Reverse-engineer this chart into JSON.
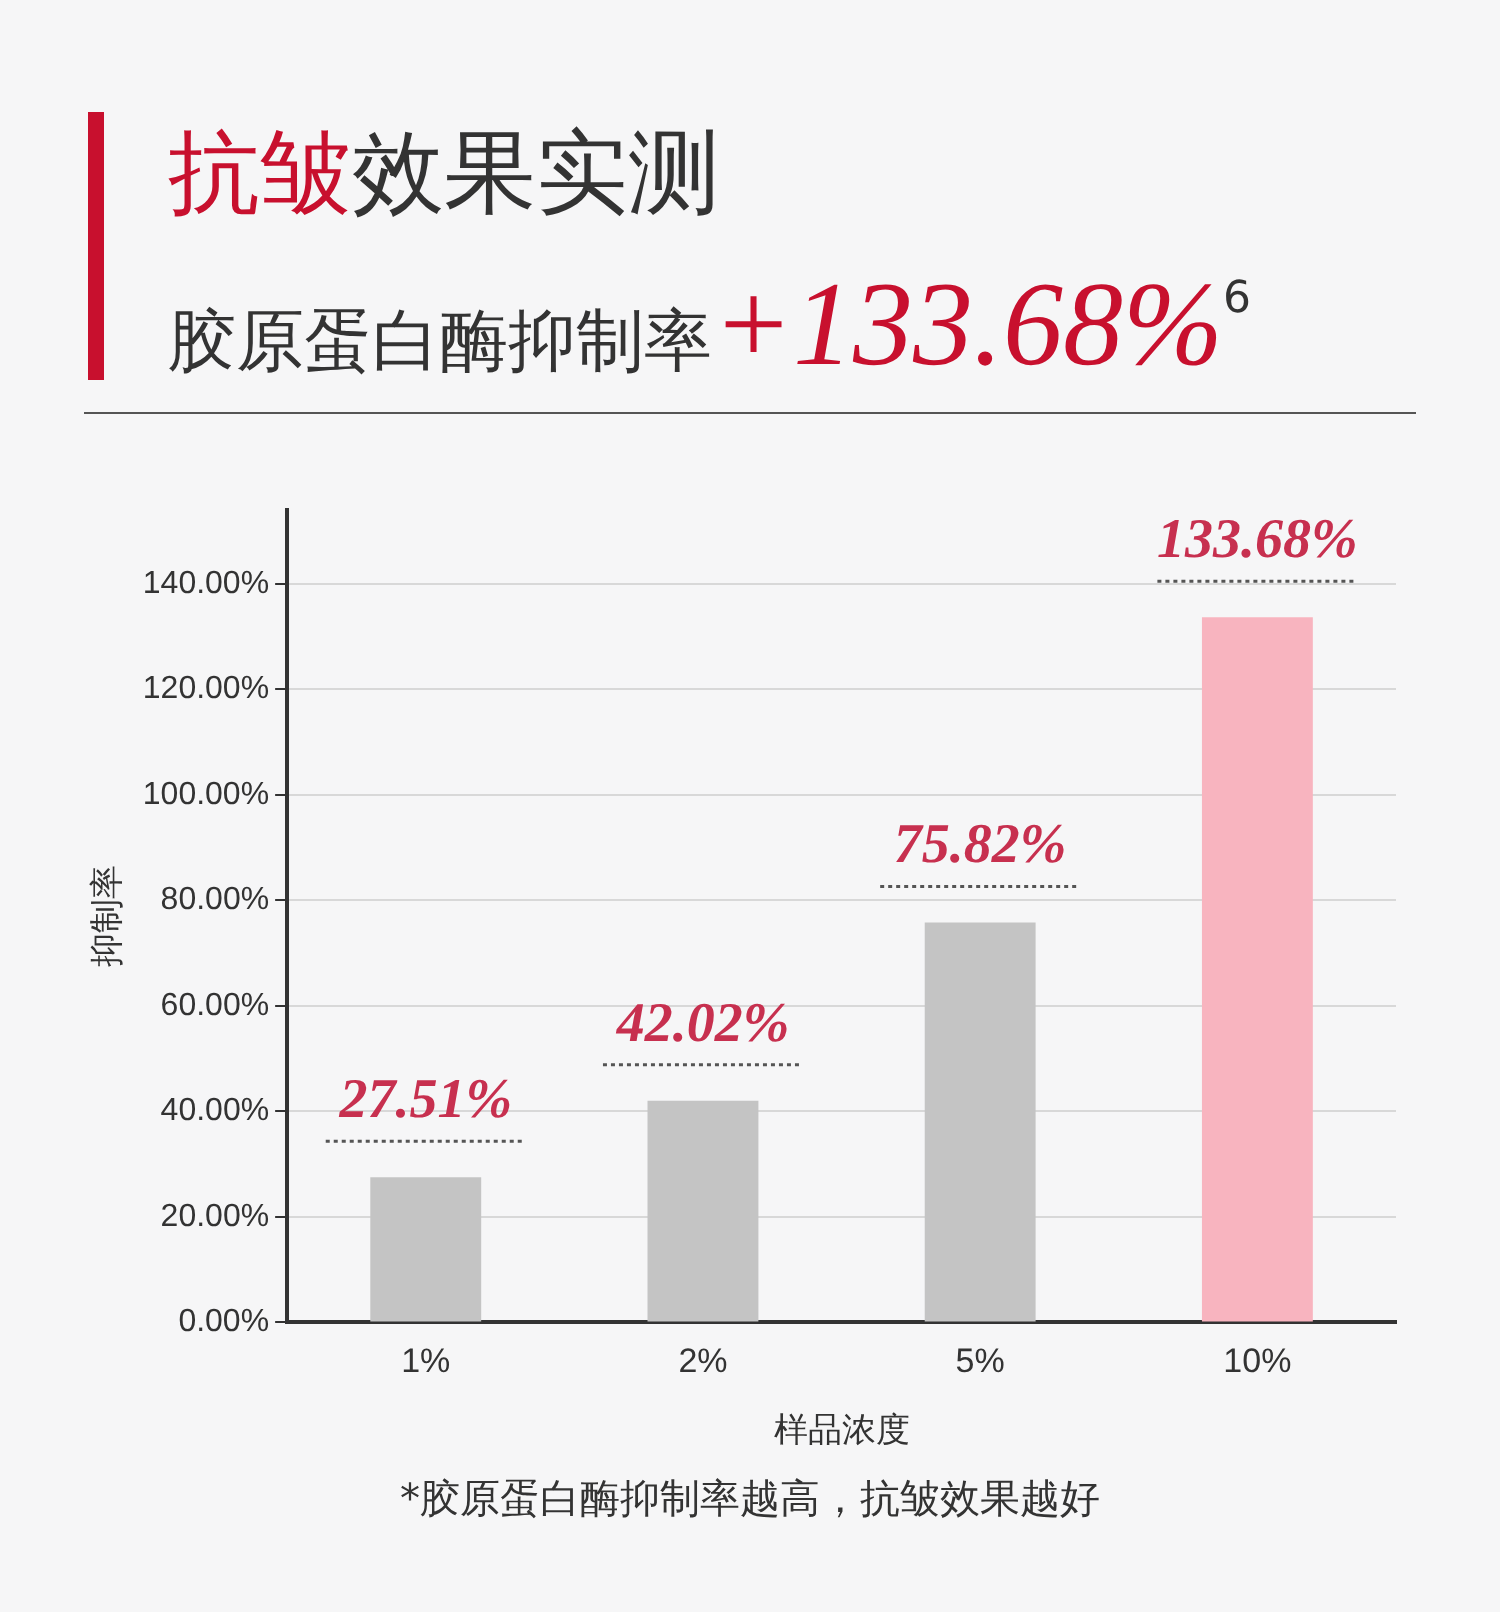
{
  "chart_data": {
    "type": "bar",
    "title": "抗皱效果实测",
    "subtitle": "胶原蛋白酶抑制率+133.68%$^{6}$",
    "xlabel": "样品浓度",
    "ylabel": "抑制率",
    "categories": [
      "1%",
      "2%",
      "5%",
      "10%"
    ],
    "values": [
      27.51,
      42.02,
      75.82,
      133.68
    ],
    "value_labels": [
      "27.51%",
      "42.02%",
      "75.82%",
      "133.68%"
    ],
    "colors": [
      "#c4c4c4",
      "#c4c4c4",
      "#c4c4c4",
      "#f8b4bf"
    ],
    "ylim": [
      0,
      154
    ],
    "yticks": [
      {
        "value": 0,
        "label": "0.00%"
      },
      {
        "value": 20,
        "label": "20.00%"
      },
      {
        "value": 40,
        "label": "40.00%"
      },
      {
        "value": 60,
        "label": "60.00%"
      },
      {
        "value": 80,
        "label": "80.00%"
      },
      {
        "value": 100,
        "label": "100.00%"
      },
      {
        "value": 120,
        "label": "120.00%"
      },
      {
        "value": 140,
        "label": "140.00%"
      }
    ],
    "grid": "y",
    "annotations": [
      "*胶原蛋白酶抑制率越高，抗皱效果越好"
    ]
  }
}
